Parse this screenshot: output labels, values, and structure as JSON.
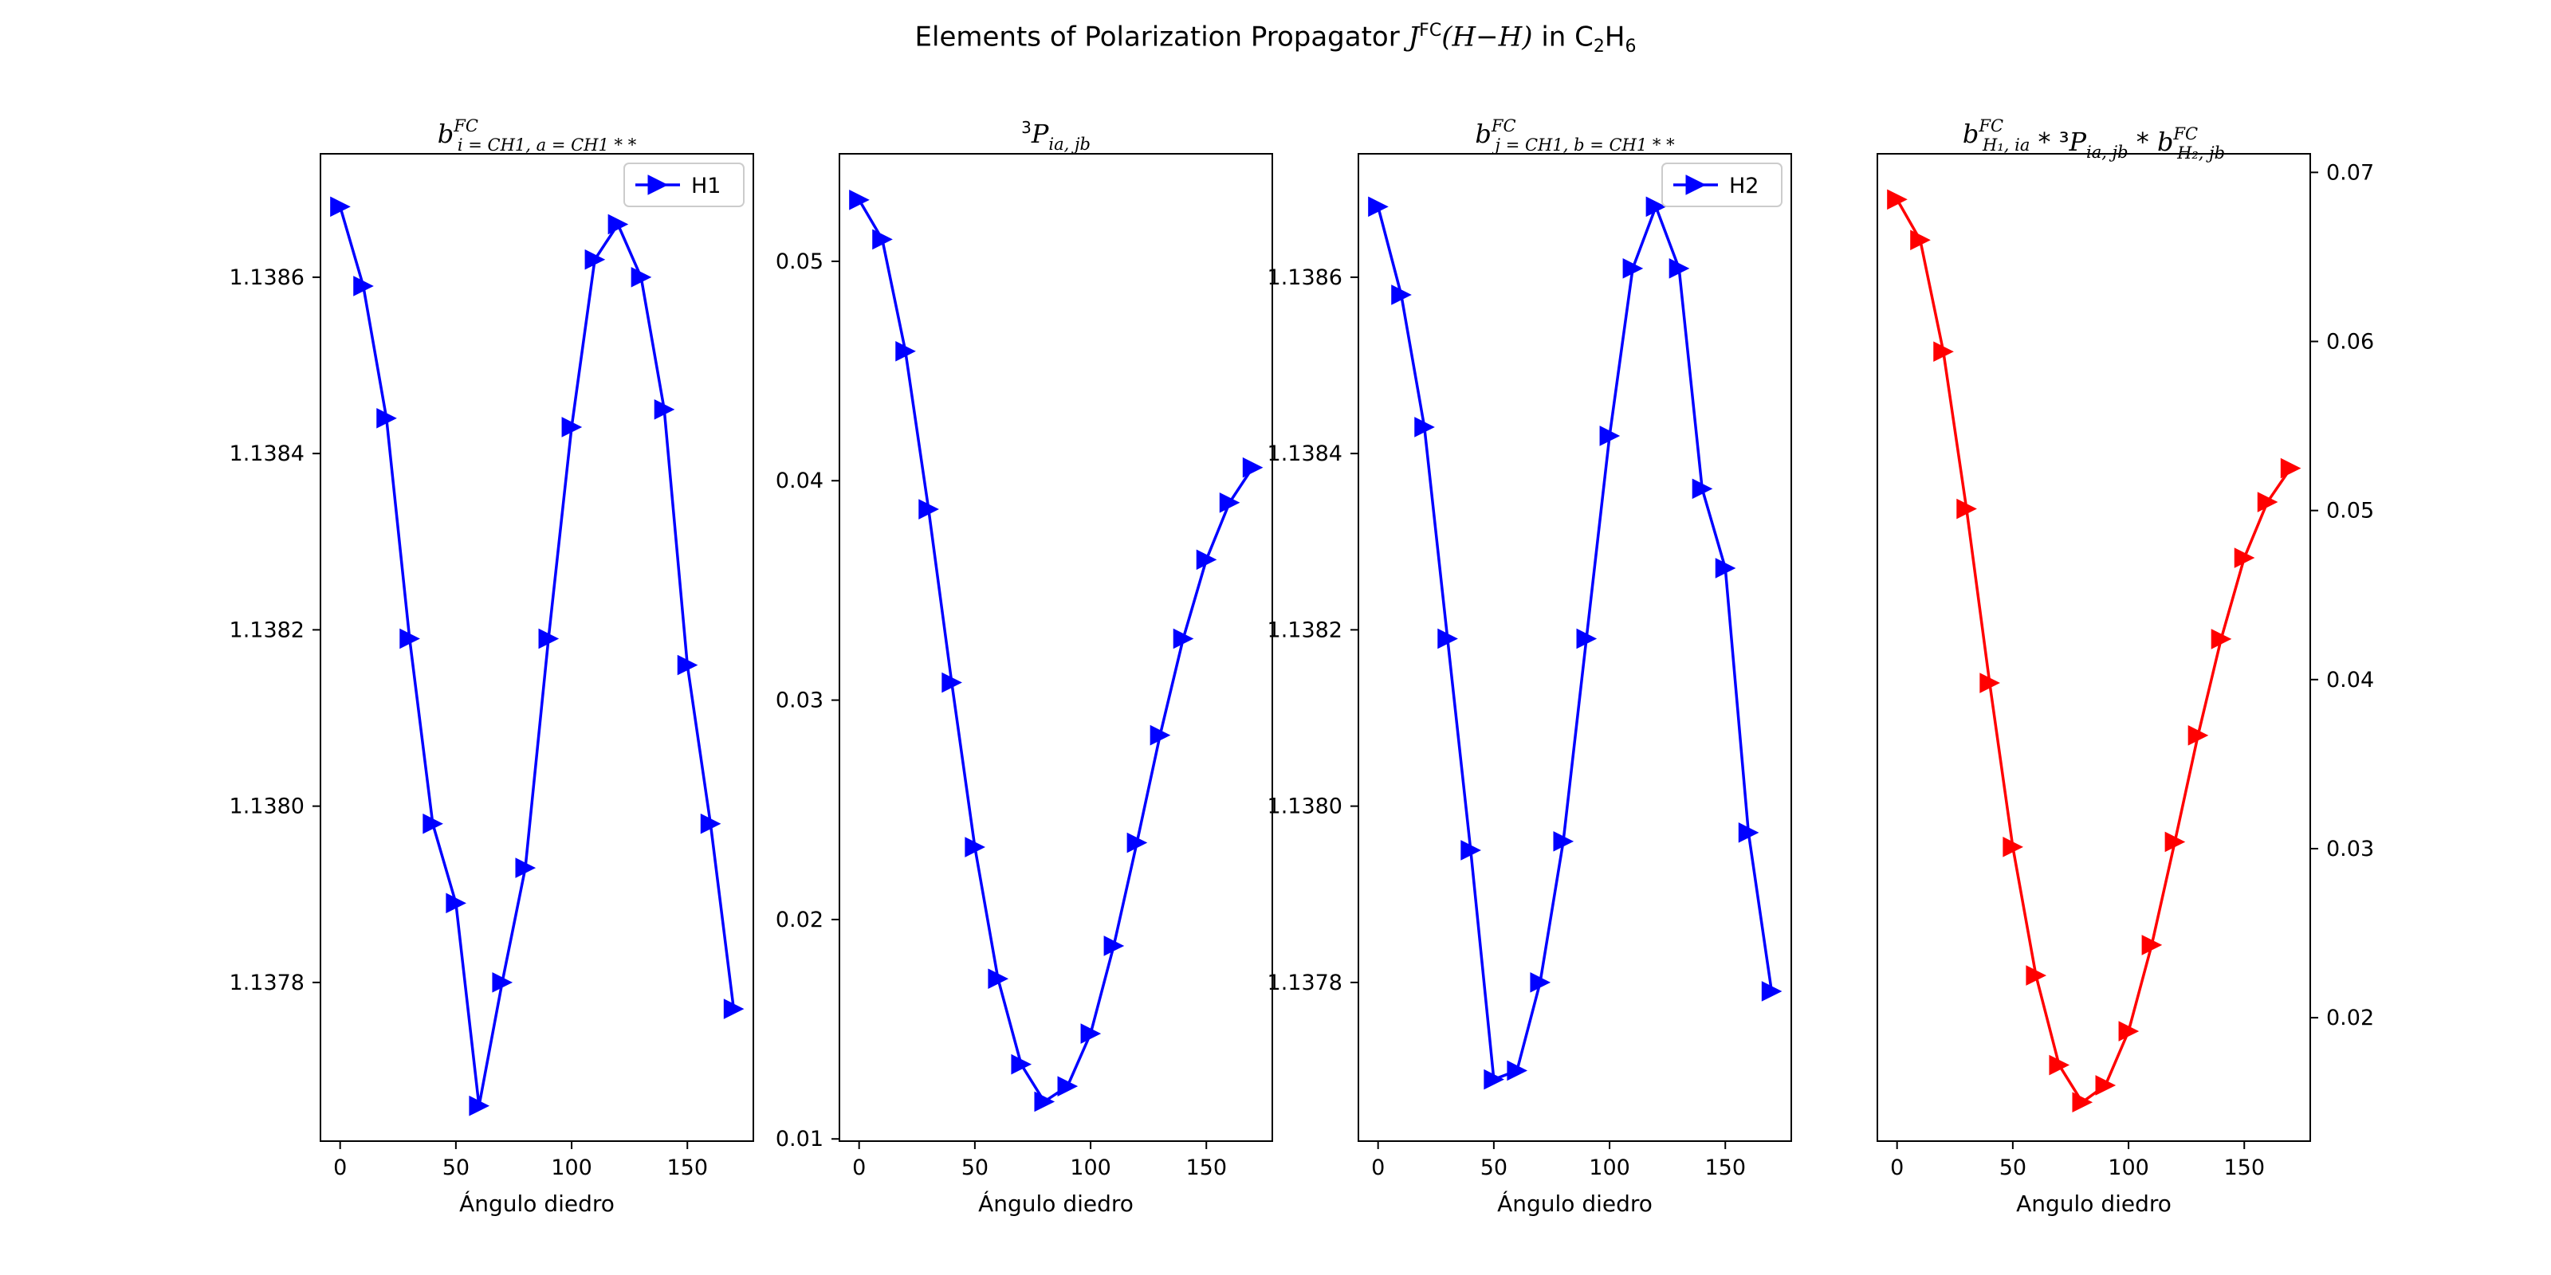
{
  "figure": {
    "title_prefix": "Elements of Polarization Propagator ",
    "title_func_j": "J",
    "title_func_sup": "FC",
    "title_func_args": "(H−H)",
    "title_in": " in C",
    "title_sub1": "2",
    "title_mid": "H",
    "title_sub2": "6"
  },
  "chart_data": [
    {
      "type": "line",
      "title": {
        "base": "b",
        "sup": "FC",
        "sub": "i = CH1, a = CH1 * *"
      },
      "xlabel": "Ángulo diedro",
      "x": [
        0,
        10,
        20,
        30,
        40,
        50,
        60,
        70,
        80,
        90,
        100,
        110,
        120,
        130,
        140,
        150,
        160,
        170
      ],
      "series": [
        {
          "name": "H1",
          "color": "#0000ff",
          "values": [
            1.13868,
            1.13859,
            1.13844,
            1.13819,
            1.13798,
            1.13789,
            1.13766,
            1.1378,
            1.13793,
            1.13819,
            1.13843,
            1.13862,
            1.13866,
            1.1386,
            1.13845,
            1.13816,
            1.13798,
            1.13777
          ]
        }
      ],
      "xlim": [
        -8.5,
        178.5
      ],
      "ylim": [
        1.13762,
        1.13874
      ],
      "yticks": [
        1.1378,
        1.138,
        1.1382,
        1.1384,
        1.1386
      ],
      "ytick_labels": [
        "1.1378",
        "1.1380",
        "1.1382",
        "1.1384",
        "1.1386"
      ],
      "xticks": [
        0,
        50,
        100,
        150
      ],
      "xtick_labels": [
        "0",
        "50",
        "100",
        "150"
      ],
      "yaxis_side": "left",
      "legend": "top-right"
    },
    {
      "type": "line",
      "title": {
        "pre": "3",
        "base": "P",
        "sub": "ia, jb"
      },
      "xlabel": "Ángulo diedro",
      "x": [
        0,
        10,
        20,
        30,
        40,
        50,
        60,
        70,
        80,
        90,
        100,
        110,
        120,
        130,
        140,
        150,
        160,
        170
      ],
      "series": [
        {
          "name": "",
          "color": "#0000ff",
          "values": [
            0.0528,
            0.051,
            0.0459,
            0.0387,
            0.0308,
            0.0233,
            0.0173,
            0.0134,
            0.0117,
            0.0124,
            0.0148,
            0.0188,
            0.0235,
            0.0284,
            0.0328,
            0.0364,
            0.039,
            0.0406
          ]
        }
      ],
      "xlim": [
        -8.5,
        178.5
      ],
      "ylim": [
        0.0099,
        0.0549
      ],
      "yticks": [
        0.01,
        0.02,
        0.03,
        0.04,
        0.05
      ],
      "ytick_labels": [
        "0.01",
        "0.02",
        "0.03",
        "0.04",
        "0.05"
      ],
      "xticks": [
        0,
        50,
        100,
        150
      ],
      "xtick_labels": [
        "0",
        "50",
        "100",
        "150"
      ],
      "yaxis_side": "left",
      "legend": "none"
    },
    {
      "type": "line",
      "title": {
        "base": "b",
        "sup": "FC",
        "sub": "j = CH1, b = CH1 * *"
      },
      "xlabel": "Ángulo diedro",
      "x": [
        0,
        10,
        20,
        30,
        40,
        50,
        60,
        70,
        80,
        90,
        100,
        110,
        120,
        130,
        140,
        150,
        160,
        170
      ],
      "series": [
        {
          "name": "H2",
          "color": "#0000ff",
          "values": [
            1.13868,
            1.13858,
            1.13843,
            1.13819,
            1.13795,
            1.13769,
            1.1377,
            1.1378,
            1.13796,
            1.13819,
            1.13842,
            1.13861,
            1.13868,
            1.13861,
            1.13836,
            1.13827,
            1.13797,
            1.13779
          ]
        }
      ],
      "xlim": [
        -8.5,
        178.5
      ],
      "ylim": [
        1.13762,
        1.13874
      ],
      "yticks": [
        1.1378,
        1.138,
        1.1382,
        1.1384,
        1.1386
      ],
      "ytick_labels": [
        "1.1378",
        "1.1380",
        "1.1382",
        "1.1384",
        "1.1386"
      ],
      "xticks": [
        0,
        50,
        100,
        150
      ],
      "xtick_labels": [
        "0",
        "50",
        "100",
        "150"
      ],
      "yaxis_side": "left",
      "legend": "top-right"
    },
    {
      "type": "line",
      "title": {
        "base": "b",
        "sup": "FC",
        "sub": "H₁, ia",
        "mid": " * ³",
        "base2": "P",
        "sub2": "ia, jb",
        "mid2": " * ",
        "base3": "b",
        "sup3": "FC",
        "sub3": "H₂, jb"
      },
      "xlabel": "Angulo diedro",
      "x": [
        0,
        10,
        20,
        30,
        40,
        50,
        60,
        70,
        80,
        90,
        100,
        110,
        120,
        130,
        140,
        150,
        160,
        170
      ],
      "series": [
        {
          "name": "",
          "color": "#ff0000",
          "values": [
            0.0684,
            0.066,
            0.0594,
            0.0501,
            0.0398,
            0.0301,
            0.0225,
            0.0172,
            0.015,
            0.016,
            0.0192,
            0.0243,
            0.0304,
            0.0367,
            0.0424,
            0.0472,
            0.0505,
            0.0525
          ]
        }
      ],
      "xlim": [
        -8.5,
        178.5
      ],
      "ylim": [
        0.0127,
        0.0711
      ],
      "yticks": [
        0.02,
        0.03,
        0.04,
        0.05,
        0.06,
        0.07
      ],
      "ytick_labels": [
        "0.02",
        "0.03",
        "0.04",
        "0.05",
        "0.06",
        "0.07"
      ],
      "xticks": [
        0,
        50,
        100,
        150
      ],
      "xtick_labels": [
        "0",
        "50",
        "100",
        "150"
      ],
      "yaxis_side": "right",
      "legend": "none"
    }
  ]
}
